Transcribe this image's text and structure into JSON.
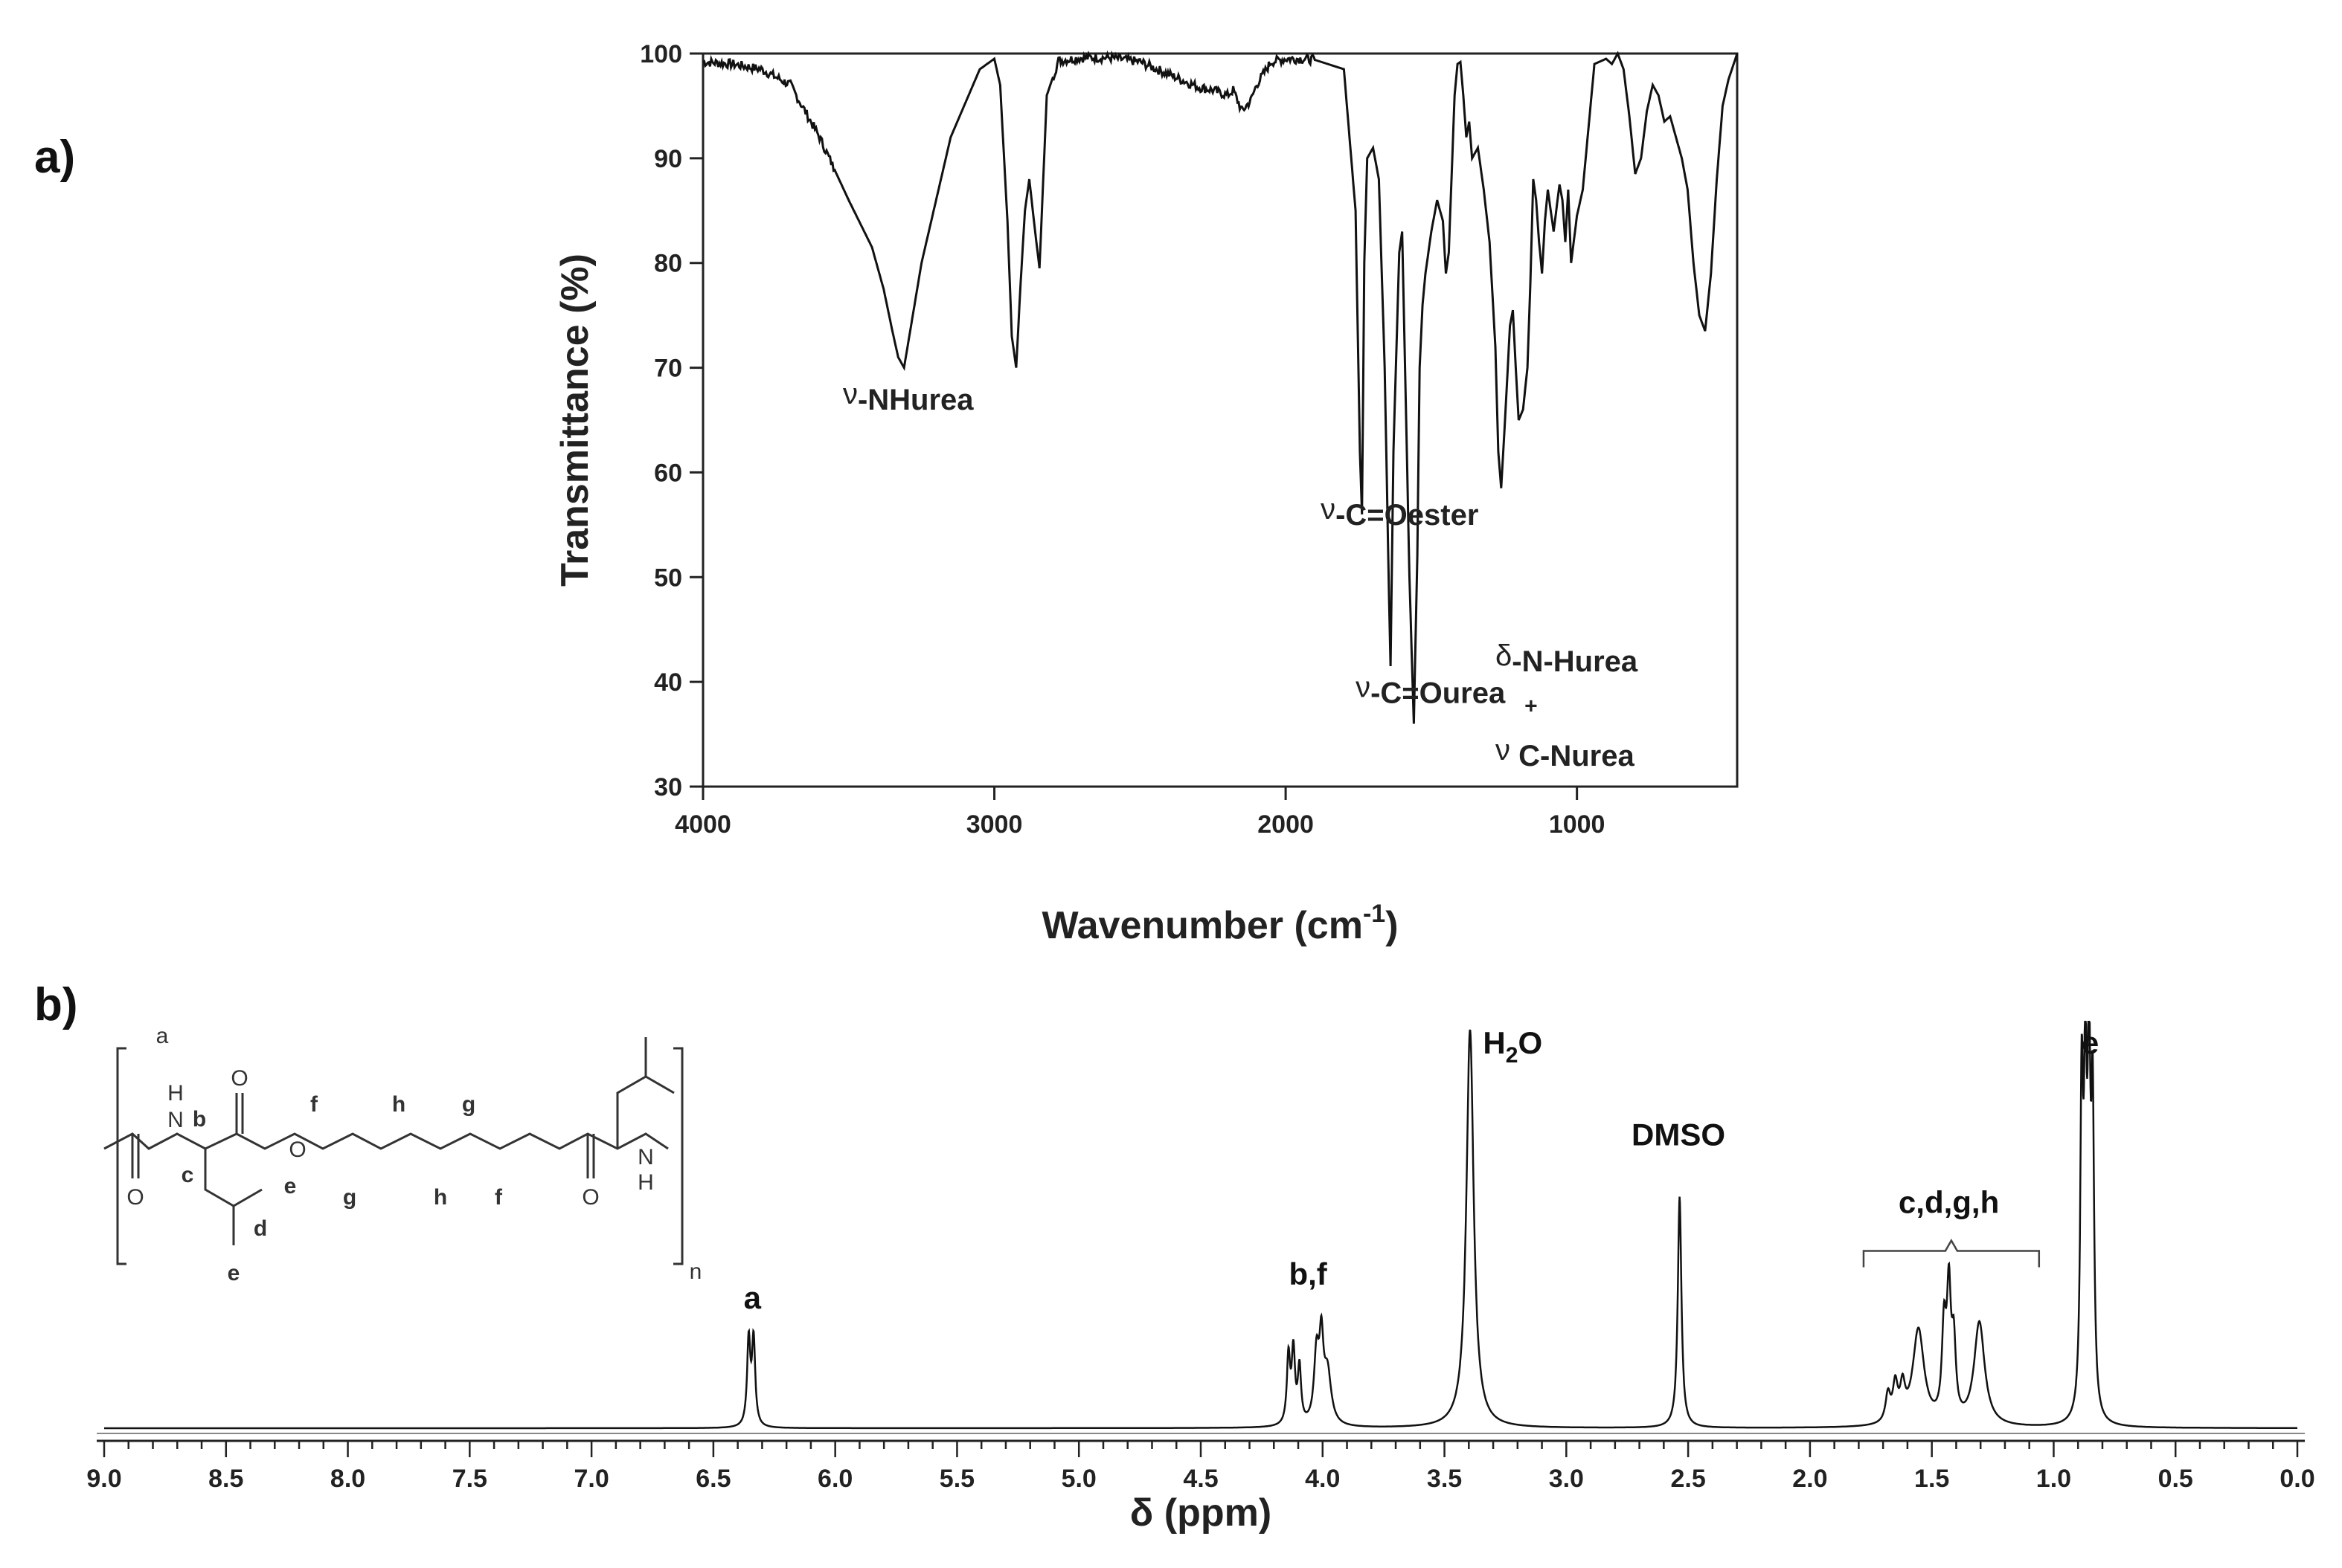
{
  "chart_data": [
    {
      "panel": "a)",
      "type": "line",
      "xlabel": "Wavenumber (cm-1)",
      "xlabel_main": "Wavenumber (cm",
      "xlabel_sup": "-1",
      "xlabel_close": ")",
      "ylabel": "Transmittance (%)",
      "xlim": [
        4000,
        450
      ],
      "x_reversed": true,
      "ylim": [
        30,
        100
      ],
      "xticks": [
        4000,
        3000,
        2000,
        1000
      ],
      "yticks": [
        30,
        40,
        50,
        60,
        70,
        80,
        90,
        100
      ],
      "grid": false,
      "annotations": [
        {
          "sym": "ν",
          "text": "-NHurea",
          "x": 3520,
          "y": 66
        },
        {
          "sym": "ν",
          "text": "-C=Oester",
          "x": 1880,
          "y": 55
        },
        {
          "sym": "ν",
          "text": "-C=Ourea",
          "x": 1760,
          "y": 38
        },
        {
          "sym": "δ",
          "text": "-N-Hurea",
          "x": 1280,
          "y": 41
        },
        {
          "sym": "",
          "text": "+",
          "x": 1180,
          "y": 37
        },
        {
          "sym": "ν",
          "text": " C-Nurea",
          "x": 1280,
          "y": 32
        }
      ],
      "series": [
        {
          "x": [
            4000,
            3900,
            3800,
            3700,
            3600,
            3500,
            3420,
            3380,
            3350,
            3330,
            3310,
            3250,
            3150,
            3050,
            3000,
            2980,
            2955,
            2940,
            2925,
            2910,
            2895,
            2880,
            2860,
            2845,
            2820,
            2780,
            2700,
            2600,
            2500,
            2400,
            2300,
            2250,
            2200,
            2180,
            2150,
            2120,
            2100,
            2050,
            2000,
            1950,
            1900,
            1800,
            1760,
            1745,
            1738,
            1730,
            1720,
            1700,
            1680,
            1660,
            1645,
            1640,
            1630,
            1610,
            1600,
            1590,
            1575,
            1560,
            1548,
            1540,
            1530,
            1520,
            1500,
            1480,
            1460,
            1450,
            1440,
            1420,
            1410,
            1400,
            1390,
            1380,
            1370,
            1360,
            1340,
            1320,
            1300,
            1280,
            1270,
            1260,
            1245,
            1230,
            1220,
            1210,
            1200,
            1185,
            1170,
            1160,
            1150,
            1140,
            1130,
            1120,
            1110,
            1100,
            1080,
            1060,
            1050,
            1040,
            1030,
            1020,
            1000,
            980,
            960,
            940,
            900,
            880,
            860,
            840,
            820,
            800,
            780,
            760,
            740,
            720,
            700,
            680,
            660,
            640,
            620,
            600,
            580,
            560,
            540,
            520,
            500,
            480,
            450
          ],
          "y": [
            99.2,
            99.0,
            98.5,
            97.0,
            92.0,
            86.0,
            81.5,
            77.5,
            73.5,
            71.0,
            70.0,
            80.0,
            92.0,
            98.5,
            99.5,
            97.0,
            84.0,
            73.0,
            70.0,
            78.0,
            85.0,
            88.0,
            83.0,
            79.5,
            96.0,
            99.3,
            99.6,
            99.6,
            99.2,
            98.0,
            96.8,
            96.5,
            96.0,
            96.5,
            94.5,
            95.5,
            97.0,
            99.2,
            99.5,
            99.5,
            99.4,
            98.5,
            85.0,
            62.0,
            56.0,
            80.0,
            90.0,
            91.0,
            88.0,
            70.0,
            48.0,
            41.5,
            62.0,
            81.0,
            83.0,
            70.0,
            50.0,
            36.0,
            52.0,
            70.0,
            76.0,
            79.0,
            83.0,
            86.0,
            84.0,
            79.0,
            81.0,
            96.0,
            99.0,
            99.2,
            96.0,
            92.0,
            93.5,
            90.0,
            91.0,
            87.0,
            82.0,
            72.0,
            62.0,
            58.5,
            66.0,
            74.0,
            75.5,
            70.0,
            65.0,
            66.0,
            70.0,
            78.0,
            88.0,
            86.0,
            82.0,
            79.0,
            84.0,
            87.0,
            83.0,
            87.5,
            86.0,
            82.0,
            87.0,
            80.0,
            84.5,
            87.0,
            93.0,
            99.0,
            99.5,
            99.0,
            100.0,
            98.5,
            94.0,
            88.5,
            90.0,
            94.5,
            97.0,
            96.0,
            93.5,
            94.0,
            92.0,
            90.0,
            87.0,
            80.0,
            75.0,
            73.5,
            79.0,
            88.0,
            95.0,
            97.5,
            100.0
          ]
        }
      ]
    },
    {
      "panel": "b)",
      "type": "line",
      "xlabel": "δ (ppm)",
      "xlim": [
        9.0,
        0.0
      ],
      "x_reversed": true,
      "xticks": [
        9.0,
        8.5,
        8.0,
        7.5,
        7.0,
        6.5,
        6.0,
        5.5,
        5.0,
        4.5,
        4.0,
        3.5,
        3.0,
        2.5,
        2.0,
        1.5,
        1.0,
        0.5,
        0.0
      ],
      "xtick_labels": [
        "9.0",
        "8.5",
        "8.0",
        "7.5",
        "7.0",
        "6.5",
        "6.0",
        "5.5",
        "5.0",
        "4.5",
        "4.0",
        "3.5",
        "3.0",
        "2.5",
        "2.0",
        "1.5",
        "1.0",
        "0.5",
        "0.0"
      ],
      "ylim": [
        0,
        1
      ],
      "grid": false,
      "peak_labels": [
        {
          "text": "a",
          "x": 6.34,
          "y": 0.3
        },
        {
          "text": "b,f",
          "x": 4.06,
          "y": 0.36
        },
        {
          "text": "H2O",
          "text_main": "H",
          "text_sub": "2",
          "text_end": "O",
          "x": 3.22,
          "y": 0.94
        },
        {
          "text": "DMSO",
          "x": 2.54,
          "y": 0.71
        },
        {
          "text": "c,d,g,h",
          "x": 1.43,
          "y": 0.54
        },
        {
          "text": "e",
          "x": 0.85,
          "y": 0.94
        }
      ],
      "bracket": {
        "x_start": 1.78,
        "x_end": 1.06,
        "y": 0.445
      },
      "peaks": [
        {
          "pos": 6.355,
          "height": 0.215,
          "width": 0.008
        },
        {
          "pos": 6.335,
          "height": 0.215,
          "width": 0.008
        },
        {
          "pos": 4.14,
          "height": 0.17,
          "width": 0.008
        },
        {
          "pos": 4.12,
          "height": 0.18,
          "width": 0.008
        },
        {
          "pos": 4.095,
          "height": 0.14,
          "width": 0.008
        },
        {
          "pos": 4.025,
          "height": 0.17,
          "width": 0.012
        },
        {
          "pos": 4.005,
          "height": 0.19,
          "width": 0.01
        },
        {
          "pos": 3.98,
          "height": 0.13,
          "width": 0.018
        },
        {
          "pos": 3.395,
          "height": 1.0,
          "width": 0.018
        },
        {
          "pos": 2.535,
          "height": 0.58,
          "width": 0.009
        },
        {
          "pos": 1.68,
          "height": 0.07,
          "width": 0.012
        },
        {
          "pos": 1.65,
          "height": 0.09,
          "width": 0.012
        },
        {
          "pos": 1.62,
          "height": 0.08,
          "width": 0.012
        },
        {
          "pos": 1.555,
          "height": 0.24,
          "width": 0.028
        },
        {
          "pos": 1.45,
          "height": 0.22,
          "width": 0.01
        },
        {
          "pos": 1.43,
          "height": 0.31,
          "width": 0.01
        },
        {
          "pos": 1.41,
          "height": 0.18,
          "width": 0.01
        },
        {
          "pos": 1.305,
          "height": 0.26,
          "width": 0.026
        },
        {
          "pos": 0.885,
          "height": 0.79,
          "width": 0.007
        },
        {
          "pos": 0.87,
          "height": 0.77,
          "width": 0.007
        },
        {
          "pos": 0.855,
          "height": 0.82,
          "width": 0.007
        },
        {
          "pos": 0.84,
          "height": 0.74,
          "width": 0.007
        }
      ],
      "structure_labels": [
        "a",
        "b",
        "c",
        "d",
        "e",
        "e",
        "f",
        "g",
        "h",
        "h",
        "g",
        "f",
        "n",
        "H",
        "H",
        "O",
        "O",
        "O",
        "O",
        "N",
        "N"
      ]
    }
  ]
}
